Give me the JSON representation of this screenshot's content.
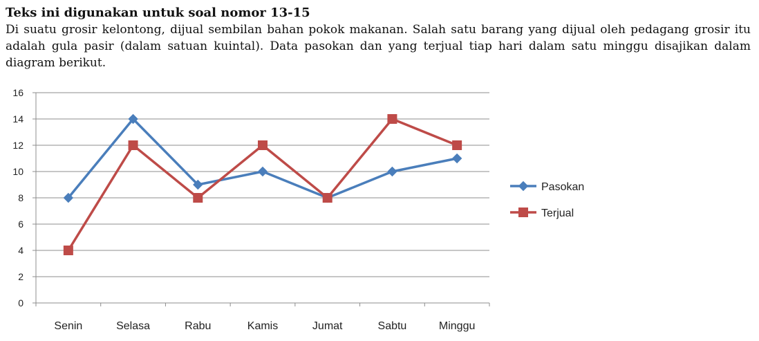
{
  "intro": {
    "heading": "Teks ini digunakan untuk soal nomor 13-15",
    "paragraph": "Di suatu grosir kelontong, dijual sembilan bahan pokok makanan. Salah satu barang yang dijual oleh pedagang grosir itu adalah gula pasir (dalam satuan kuintal). Data pasokan dan yang terjual tiap hari dalam satu minggu disajikan dalam diagram berikut."
  },
  "chart_data": {
    "type": "line",
    "title": "",
    "xlabel": "",
    "ylabel": "",
    "categories": [
      "Senin",
      "Selasa",
      "Rabu",
      "Kamis",
      "Jumat",
      "Sabtu",
      "Minggu"
    ],
    "ylim": [
      0,
      16
    ],
    "yticks": [
      0,
      2,
      4,
      6,
      8,
      10,
      12,
      14,
      16
    ],
    "grid": true,
    "legend_position": "right",
    "series": [
      {
        "name": "Pasokan",
        "values": [
          8,
          14,
          9,
          10,
          8,
          10,
          11
        ],
        "color": "#4a7ebb",
        "marker": "diamond"
      },
      {
        "name": "Terjual",
        "values": [
          4,
          12,
          8,
          12,
          8,
          14,
          12
        ],
        "color": "#be4b48",
        "marker": "square"
      }
    ]
  }
}
